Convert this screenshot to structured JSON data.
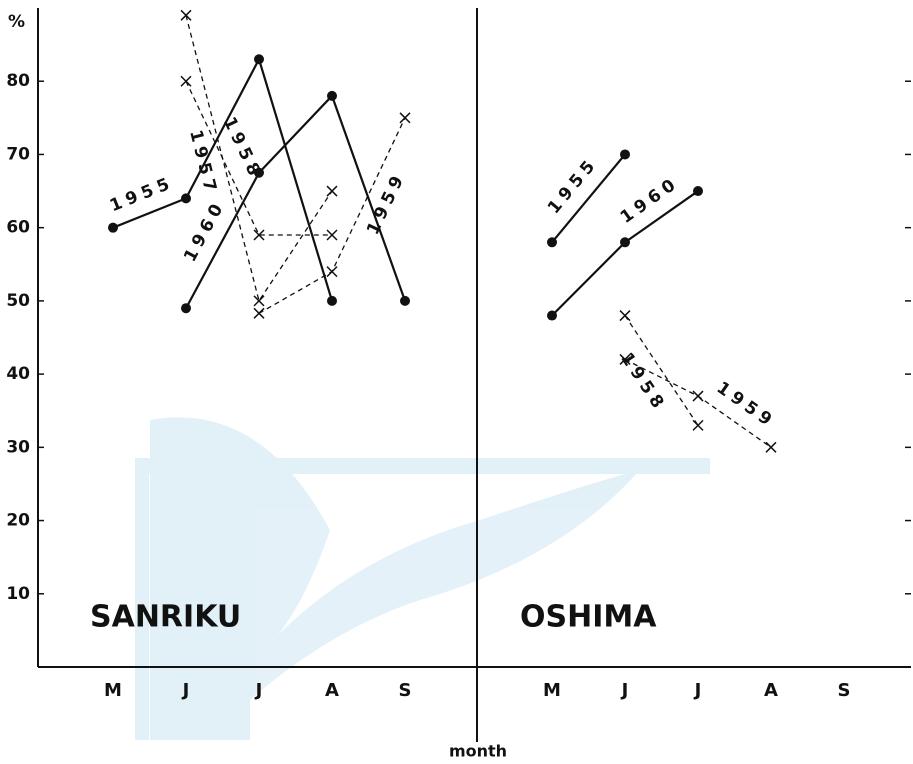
{
  "chart_data": [
    {
      "type": "line",
      "title": "SANRIKU",
      "ylabel": "%",
      "xlabel": "month",
      "categories": [
        "M",
        "J",
        "J",
        "A",
        "S"
      ],
      "ylim": [
        0,
        90
      ],
      "yticks": [
        10,
        20,
        30,
        40,
        50,
        60,
        70,
        80
      ],
      "series": [
        {
          "name": "1955",
          "color": "#111111",
          "style": "solid",
          "marker": "o",
          "values": [
            60,
            64,
            83,
            50,
            null
          ]
        },
        {
          "name": "1960",
          "color": "#111111",
          "style": "solid",
          "marker": "o",
          "values": [
            null,
            49,
            67.5,
            78,
            50
          ]
        },
        {
          "name": "1957",
          "color": "#111111",
          "style": "dashed",
          "marker": "x",
          "values": [
            null,
            89,
            50,
            65,
            null
          ]
        },
        {
          "name": "1958",
          "color": "#111111",
          "style": "dashed",
          "marker": "x",
          "values": [
            null,
            80,
            59,
            59,
            null
          ]
        },
        {
          "name": "1959",
          "color": "#111111",
          "style": "dashed",
          "marker": "x",
          "values": [
            null,
            null,
            48.3,
            54,
            75
          ]
        }
      ]
    },
    {
      "type": "line",
      "title": "OSHIMA",
      "categories": [
        "M",
        "J",
        "J",
        "A",
        "S"
      ],
      "ylim": [
        0,
        90
      ],
      "series": [
        {
          "name": "1955",
          "color": "#111111",
          "style": "solid",
          "marker": "o",
          "values": [
            58,
            70,
            null,
            null,
            null
          ]
        },
        {
          "name": "1960",
          "color": "#111111",
          "style": "solid",
          "marker": "o",
          "values": [
            48,
            58,
            65,
            null,
            null
          ]
        },
        {
          "name": "1958",
          "color": "#111111",
          "style": "dashed",
          "marker": "x",
          "values": [
            null,
            48,
            33,
            null,
            null
          ]
        },
        {
          "name": "1959",
          "color": "#111111",
          "style": "dashed",
          "marker": "x",
          "values": [
            null,
            42,
            37,
            30,
            null
          ]
        }
      ]
    }
  ]
}
